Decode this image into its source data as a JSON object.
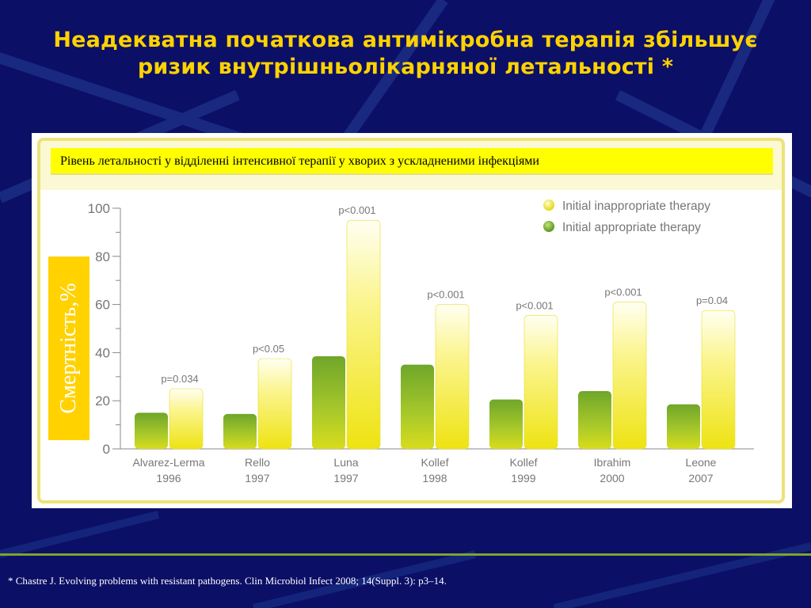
{
  "slide": {
    "title_line1": "Неадекватна початкова антимікробна терапія збільшує",
    "title_line2": "ризик внутрішньолікарняної летальності *",
    "caption": "Рівень летальності у відділенні інтенсивної терапії у хворих з ускладненими інфекціями",
    "footnote": "* Chastre J. Evolving problems with resistant pathogens. Clin Microbiol Infect 2008; 14(Suppl. 3): p3–14."
  },
  "colors": {
    "background": "#0b0f66",
    "title": "#ffd200",
    "caption_bg": "#ffff00",
    "inappropriate": "#f2e81a",
    "appropriate": "#8cba2a"
  },
  "chart_data": {
    "type": "bar",
    "ylabel": "Смертність,%",
    "ylim": [
      0,
      100
    ],
    "yticks": [
      0,
      20,
      40,
      60,
      80,
      100
    ],
    "legend_position": "top-right",
    "categories": [
      {
        "name": "Alvarez-Lerma",
        "year": "1996"
      },
      {
        "name": "Rello",
        "year": "1997"
      },
      {
        "name": "Luna",
        "year": "1997"
      },
      {
        "name": "Kollef",
        "year": "1998"
      },
      {
        "name": "Kollef",
        "year": "1999"
      },
      {
        "name": "Ibrahim",
        "year": "2000"
      },
      {
        "name": "Leone",
        "year": "2007"
      }
    ],
    "series": [
      {
        "name": "Initial appropriate therapy",
        "values": [
          15,
          14.5,
          38.5,
          35,
          20.5,
          24,
          18.5
        ]
      },
      {
        "name": "Initial inappropriate therapy",
        "values": [
          25,
          37.5,
          95,
          60,
          55.5,
          61,
          57.5
        ]
      }
    ],
    "annotations": [
      "p=0.034",
      "p<0.05",
      "p<0.001",
      "p<0.001",
      "p<0.001",
      "p<0.001",
      "p=0.04"
    ]
  }
}
